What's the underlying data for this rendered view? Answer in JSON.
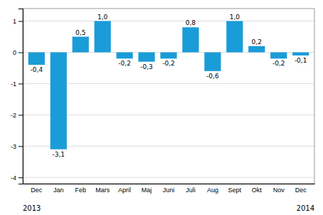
{
  "chart_data": {
    "type": "bar",
    "categories": [
      "Dec",
      "Jan",
      "Feb",
      "Mars",
      "April",
      "Maj",
      "Juni",
      "Juli",
      "Aug",
      "Sept",
      "Okt",
      "Nov",
      "Dec"
    ],
    "values": [
      -0.4,
      -3.1,
      0.5,
      1.0,
      -0.2,
      -0.3,
      -0.2,
      0.8,
      -0.6,
      1.0,
      0.2,
      -0.2,
      -0.1
    ],
    "value_labels": [
      "-0,4",
      "-3,1",
      "0,5",
      "1,0",
      "-0,2",
      "-0,3",
      "-0,2",
      "0,8",
      "-0,6",
      "1,0",
      "0,2",
      "-0,2",
      "-0,1"
    ],
    "data_labels": true,
    "color": "#1a9cd8",
    "ylim": [
      -4.2,
      1.4
    ],
    "yticks": [
      -4,
      -3,
      -2,
      -1,
      0,
      1
    ],
    "grid": true,
    "annotations": [
      "2013",
      "2014"
    ]
  }
}
